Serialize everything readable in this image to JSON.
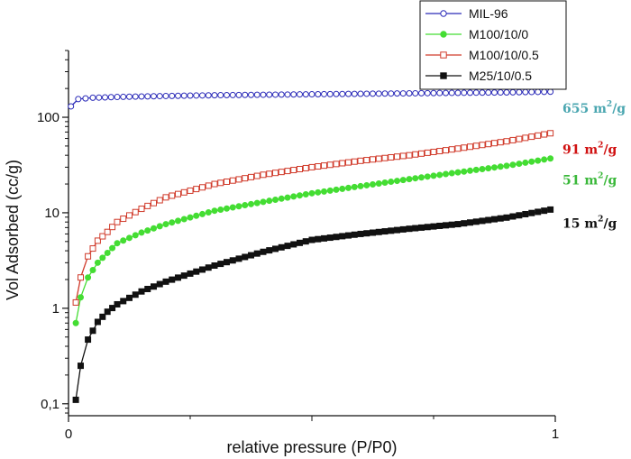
{
  "chart_data": {
    "type": "scatter",
    "title": "",
    "xlabel": "relative pressure (P/P0)",
    "ylabel": "Vol Adsorbed (cc/g)",
    "x_scale": "linear",
    "y_scale": "log",
    "xlim": [
      0,
      1
    ],
    "ylim": [
      0.075,
      500
    ],
    "x_ticks": [
      {
        "value": 0,
        "label": "0"
      },
      {
        "value": 1,
        "label": "1"
      }
    ],
    "y_ticks": [
      {
        "value": 0.1,
        "label": "0,1"
      },
      {
        "value": 1,
        "label": "1"
      },
      {
        "value": 10,
        "label": "10"
      },
      {
        "value": 100,
        "label": "100"
      }
    ],
    "legend_position": "top-right",
    "series": [
      {
        "name": "MIL-96",
        "color": "#2a2ab8",
        "marker": "circle-open",
        "x": [
          0.005,
          0.02,
          0.05,
          0.1,
          0.2,
          0.3,
          0.4,
          0.5,
          0.6,
          0.7,
          0.8,
          0.9,
          0.99
        ],
        "y": [
          130,
          155,
          160,
          163,
          167,
          170,
          172,
          174,
          176,
          178,
          180,
          182,
          185
        ]
      },
      {
        "name": "M100/10/0",
        "color": "#44dd33",
        "marker": "circle-filled",
        "x": [
          0.015,
          0.025,
          0.04,
          0.06,
          0.08,
          0.1,
          0.15,
          0.2,
          0.3,
          0.4,
          0.5,
          0.6,
          0.7,
          0.8,
          0.9,
          0.99
        ],
        "y": [
          0.7,
          1.3,
          2.1,
          3.0,
          3.8,
          4.8,
          6.2,
          7.6,
          10.5,
          13.0,
          16.0,
          19.0,
          22.5,
          26.5,
          31.0,
          37.0
        ]
      },
      {
        "name": "M100/10/0.5",
        "color": "#d03a2a",
        "marker": "square-open",
        "x": [
          0.015,
          0.025,
          0.04,
          0.06,
          0.08,
          0.1,
          0.15,
          0.2,
          0.3,
          0.4,
          0.5,
          0.6,
          0.7,
          0.8,
          0.9,
          0.99
        ],
        "y": [
          1.15,
          2.1,
          3.5,
          5.1,
          6.3,
          8.0,
          11.0,
          14.5,
          20.0,
          25.0,
          30.0,
          35.0,
          40.0,
          47.0,
          56.0,
          68.0
        ]
      },
      {
        "name": "M25/10/0.5",
        "color": "#111111",
        "marker": "square-filled",
        "x": [
          0.015,
          0.025,
          0.04,
          0.06,
          0.08,
          0.1,
          0.15,
          0.2,
          0.3,
          0.4,
          0.5,
          0.6,
          0.7,
          0.8,
          0.9,
          0.99
        ],
        "y": [
          0.11,
          0.25,
          0.47,
          0.72,
          0.92,
          1.1,
          1.5,
          1.9,
          2.8,
          3.9,
          5.2,
          6.0,
          6.8,
          7.6,
          8.9,
          10.8
        ]
      }
    ],
    "annotations": [
      {
        "value": "655",
        "unit_base": "m",
        "unit_sup": "2",
        "unit_tail": "/g",
        "color": "#4aa6b0",
        "y": 125
      },
      {
        "value": "91",
        "unit_base": "m",
        "unit_sup": "2",
        "unit_tail": "/g",
        "color": "#d01010",
        "y": 46
      },
      {
        "value": "51",
        "unit_base": "m",
        "unit_sup": "2",
        "unit_tail": "/g",
        "color": "#3ab83a",
        "y": 22
      },
      {
        "value": "15",
        "unit_base": "m",
        "unit_sup": "2",
        "unit_tail": "/g",
        "color": "#111111",
        "y": 7.8
      }
    ]
  }
}
